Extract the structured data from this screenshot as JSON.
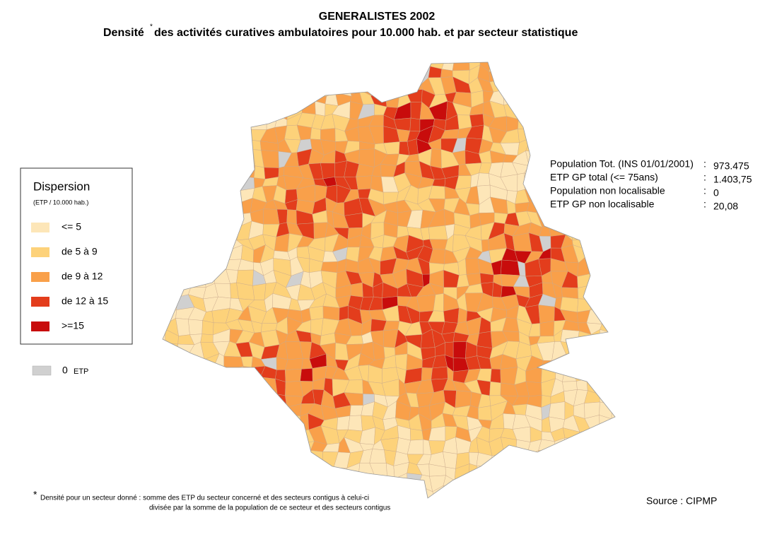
{
  "title": "GENERALISTES  2002",
  "subtitle": {
    "prefix": "Densité",
    "mark": "*",
    "rest": "des activités curatives ambulatoires pour 10.000 hab. et par secteur statistique"
  },
  "legend": {
    "title": "Dispersion",
    "unit": "(ETP / 10.000 hab.)",
    "items": [
      {
        "label": "<= 5",
        "color": "#fde6b8"
      },
      {
        "label": "de 5 à 9",
        "color": "#fdd27a"
      },
      {
        "label": "de 9 à 12",
        "color": "#f9a04a"
      },
      {
        "label": "de 12 à 15",
        "color": "#e33d1c"
      },
      {
        "label": ">=15",
        "color": "#c80c0c"
      }
    ],
    "zero": {
      "label": "0",
      "unit": "ETP",
      "color": "#d0d0d0"
    }
  },
  "stats": [
    {
      "label": "Population Tot. (INS 01/01/2001)",
      "colon": ":",
      "value": "973.475"
    },
    {
      "label": "ETP GP total (<= 75ans)",
      "colon": ":",
      "value": "1.403,75"
    },
    {
      "label": "Population non localisable",
      "colon": ":",
      "value": "0"
    },
    {
      "label": "ETP GP non localisable",
      "colon": ":",
      "value": "20,08"
    }
  ],
  "footnote": {
    "mark": "*",
    "line1": "Densité pour un secteur donné  : somme des ETP du secteur concerné et des secteurs contigus à celui-ci",
    "line2": "divisée  par la somme de la population de ce secteur et des secteurs contigus"
  },
  "source": "Source : CIPMP"
}
